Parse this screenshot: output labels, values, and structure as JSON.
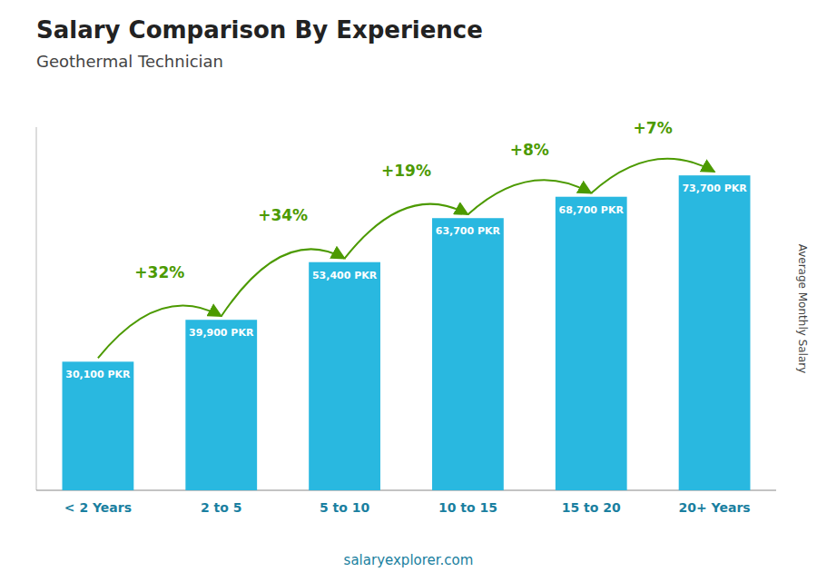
{
  "chart_data": {
    "type": "bar",
    "title": "Salary Comparison By Experience",
    "subtitle": "Geothermal Technician",
    "categories": [
      "< 2 Years",
      "2 to 5",
      "5 to 10",
      "10 to 15",
      "15 to 20",
      "20+ Years"
    ],
    "values": [
      30100,
      39900,
      53400,
      63700,
      68700,
      73700
    ],
    "value_labels": [
      "30,100 PKR",
      "39,900 PKR",
      "53,400 PKR",
      "63,700 PKR",
      "68,700 PKR",
      "73,700 PKR"
    ],
    "data_labels": true,
    "annotations": [
      "+32%",
      "+34%",
      "+19%",
      "+8%",
      "+7%"
    ],
    "ylabel": "Average Monthly Salary",
    "footer": "salaryexplorer.com",
    "color": "#29B8E0",
    "ylim": [
      0,
      85000
    ],
    "tick_labels": "x",
    "grid": false
  }
}
